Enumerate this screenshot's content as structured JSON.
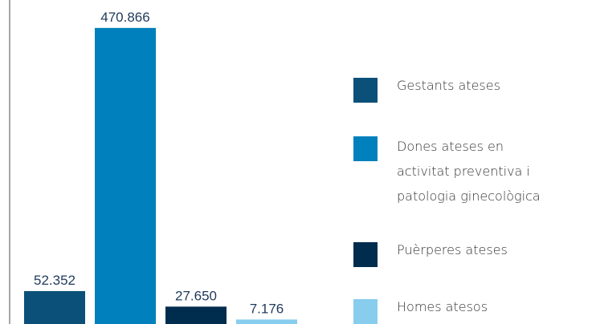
{
  "chart_data": {
    "type": "bar",
    "categories": [
      "Gestants ateses",
      "Dones ateses en activitat preventiva i patologia ginecològica",
      "Puèrperes ateses",
      "Homes atesos"
    ],
    "values": [
      52352,
      470866,
      27650,
      7176
    ],
    "value_labels": [
      "52.352",
      "470.866",
      "27.650",
      "7.176"
    ],
    "colors": [
      "#0a5079",
      "#0080bc",
      "#002c4e",
      "#88cdee"
    ],
    "ylim": [
      0,
      500000
    ],
    "legend": "right"
  }
}
